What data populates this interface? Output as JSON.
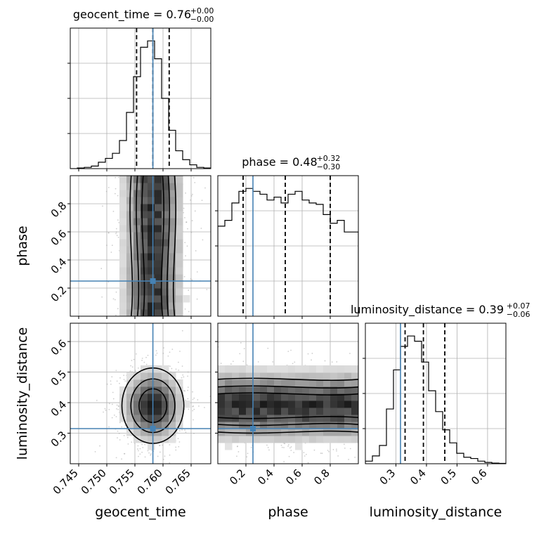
{
  "chart_data": {
    "type": "corner",
    "parameters": [
      "geocent_time",
      "phase",
      "luminosity_distance"
    ],
    "truths": {
      "geocent_time": 0.7582,
      "phase": 0.25,
      "luminosity_distance": 0.315
    },
    "colors": {
      "truth": "#4682b4",
      "grid": "#b0b0b0",
      "hist": "#000000",
      "scatter": "#a0a0a0"
    },
    "ranges": {
      "geocent_time": [
        0.7435,
        0.7685
      ],
      "phase": [
        0.0,
        1.0
      ],
      "luminosity_distance": [
        0.2,
        0.66
      ]
    },
    "ticks": {
      "geocent_time": [
        "0.745",
        "0.750",
        "0.755",
        "0.760",
        "0.765"
      ],
      "phase": [
        "0.2",
        "0.4",
        "0.6",
        "0.8"
      ],
      "luminosity_distance": [
        "0.3",
        "0.4",
        "0.5",
        "0.6"
      ]
    },
    "titles": [
      {
        "param": "geocent_time",
        "prefix": "geocent_time = 0.76",
        "sup": "+0.00",
        "sub": "−0.00"
      },
      {
        "param": "phase",
        "prefix": "phase = 0.48",
        "sup": "+0.32",
        "sub": "−0.30"
      },
      {
        "param": "luminosity_distance",
        "prefix": "luminosity_distance = 0.39",
        "sup": "+0.07",
        "sub": "−0.06"
      }
    ],
    "quantiles": {
      "geocent_time": [
        0.7553,
        0.7582,
        0.7611
      ],
      "phase": [
        0.18,
        0.48,
        0.8
      ],
      "luminosity_distance": [
        0.33,
        0.39,
        0.46
      ]
    },
    "histograms": {
      "geocent_time": [
        0,
        0.005,
        0.01,
        0.02,
        0.05,
        0.08,
        0.12,
        0.22,
        0.44,
        0.72,
        0.95,
        1.0,
        0.86,
        0.55,
        0.3,
        0.14,
        0.07,
        0.03,
        0.01,
        0.005
      ],
      "phase": [
        0.62,
        0.66,
        0.78,
        0.86,
        0.88,
        0.86,
        0.84,
        0.8,
        0.82,
        0.78,
        0.84,
        0.86,
        0.8,
        0.78,
        0.77,
        0.7,
        0.64,
        0.66,
        0.58,
        0.58
      ],
      "luminosity_distance": [
        0.02,
        0.06,
        0.14,
        0.42,
        0.72,
        0.9,
        0.98,
        0.94,
        0.78,
        0.56,
        0.4,
        0.26,
        0.16,
        0.08,
        0.05,
        0.04,
        0.02,
        0.01,
        0.005,
        0.003
      ]
    }
  }
}
